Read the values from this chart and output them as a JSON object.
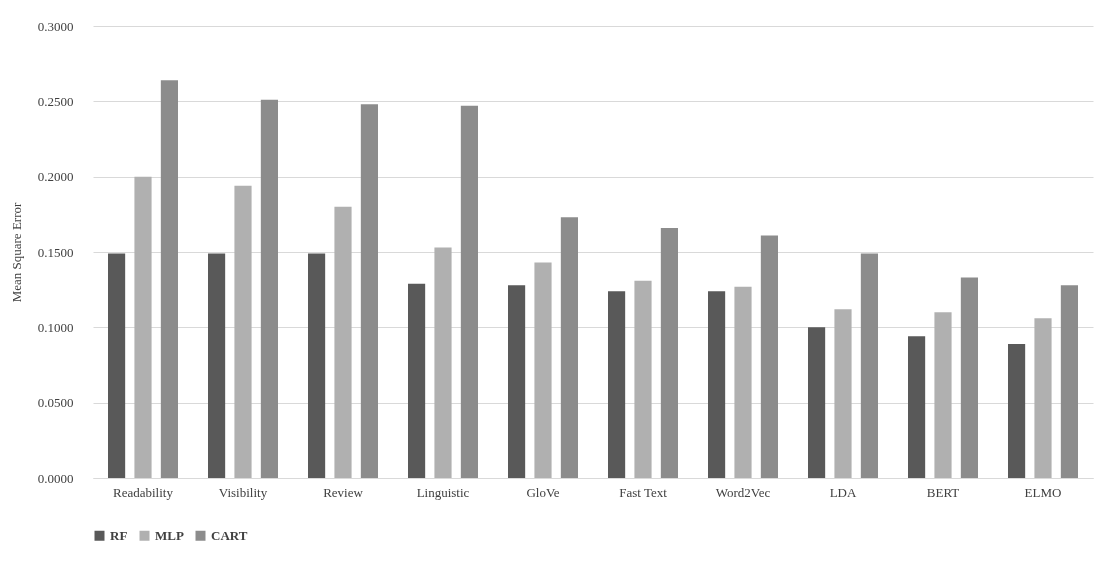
{
  "chart_data": {
    "type": "bar",
    "ylabel": "Mean Square Error",
    "categories": [
      "Readability",
      "Visibility",
      "Review",
      "Linguistic",
      "GloVe",
      "Fast Text",
      "Word2Vec",
      "LDA",
      "BERT",
      "ELMO"
    ],
    "series": [
      {
        "name": "RF",
        "color": "#595959",
        "values": [
          0.149,
          0.149,
          0.149,
          0.129,
          0.128,
          0.124,
          0.124,
          0.1,
          0.094,
          0.089
        ]
      },
      {
        "name": "MLP",
        "color": "#b0b0b0",
        "values": [
          0.2,
          0.194,
          0.18,
          0.153,
          0.143,
          0.131,
          0.127,
          0.112,
          0.11,
          0.106
        ]
      },
      {
        "name": "CART",
        "color": "#8c8c8c",
        "values": [
          0.264,
          0.251,
          0.248,
          0.247,
          0.173,
          0.166,
          0.161,
          0.149,
          0.133,
          0.128
        ]
      }
    ],
    "ylim": [
      0,
      0.3
    ],
    "yticks": [
      {
        "value": 0,
        "label": "0.0000"
      },
      {
        "value": 0.05,
        "label": "0.0500"
      },
      {
        "value": 0.1,
        "label": "0.1000"
      },
      {
        "value": 0.15,
        "label": "0.1500"
      },
      {
        "value": 0.2,
        "label": "0.2000"
      },
      {
        "value": 0.25,
        "label": "0.2500"
      },
      {
        "value": 0.3,
        "label": "0.3000"
      }
    ],
    "grid": "y",
    "legend": "bottom"
  }
}
